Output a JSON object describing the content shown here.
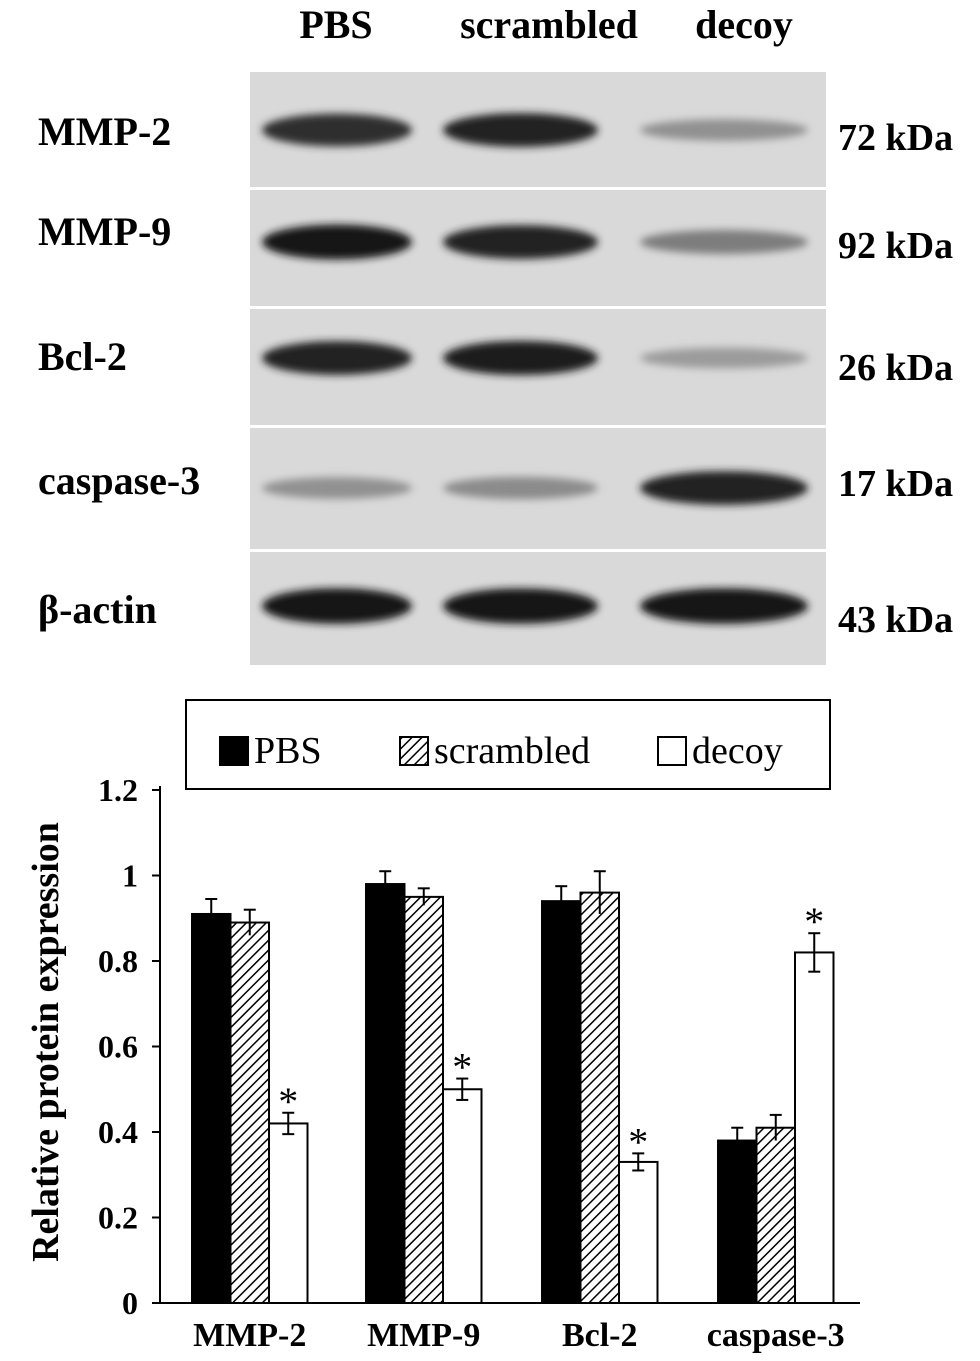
{
  "blot": {
    "lane_labels": [
      "PBS",
      "scrambled",
      "decoy"
    ],
    "rows": [
      {
        "protein": "MMP-2",
        "size": "72 kDa",
        "intensities": [
          0.85,
          0.9,
          0.35
        ]
      },
      {
        "protein": "MMP-9",
        "size": "92 kDa",
        "intensities": [
          0.95,
          0.9,
          0.45
        ]
      },
      {
        "protein": "Bcl-2",
        "size": "26 kDa",
        "intensities": [
          0.9,
          0.92,
          0.3
        ]
      },
      {
        "protein": "caspase-3",
        "size": "17 kDa",
        "intensities": [
          0.35,
          0.38,
          0.9
        ]
      },
      {
        "protein": "β-actin",
        "size": "43 kDa",
        "intensities": [
          0.98,
          0.97,
          0.98
        ]
      }
    ]
  },
  "chart_data": {
    "type": "bar",
    "categories": [
      "MMP-2",
      "MMP-9",
      "Bcl-2",
      "caspase-3"
    ],
    "series": [
      {
        "name": "PBS",
        "values": [
          0.91,
          0.98,
          0.94,
          0.38
        ],
        "errors": [
          0.035,
          0.03,
          0.035,
          0.03
        ],
        "fill": "solid",
        "color": "#000000"
      },
      {
        "name": "scrambled",
        "values": [
          0.89,
          0.95,
          0.96,
          0.41
        ],
        "errors": [
          0.03,
          0.02,
          0.05,
          0.03
        ],
        "fill": "hatched",
        "color": "#000000"
      },
      {
        "name": "decoy",
        "values": [
          0.42,
          0.5,
          0.33,
          0.82
        ],
        "errors": [
          0.025,
          0.025,
          0.02,
          0.045
        ],
        "fill": "open",
        "color": "#ffffff"
      }
    ],
    "significance": [
      "*",
      "*",
      "*",
      "*"
    ],
    "ylabel": "Relative protein expression",
    "xlabel": "",
    "ylim": [
      0,
      1.2
    ],
    "yticks": [
      "0",
      "0.2",
      "0.4",
      "0.6",
      "0.8",
      "1",
      "1.2"
    ],
    "yticks_values": [
      0,
      0.2,
      0.4,
      0.6,
      0.8,
      1.0,
      1.2
    ],
    "legend_position": "top",
    "grid": false
  }
}
